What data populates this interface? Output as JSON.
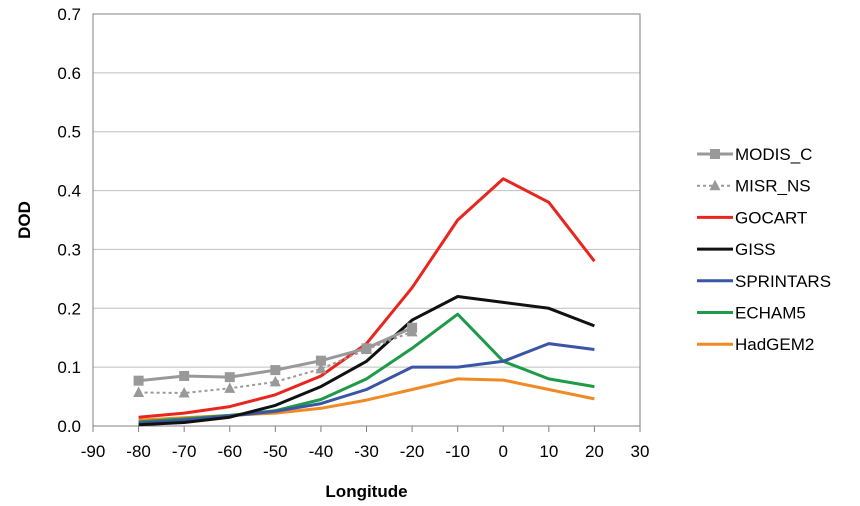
{
  "chart_data": {
    "type": "line",
    "xlabel": "Longitude",
    "ylabel": "DOD",
    "xlim": [
      -90,
      30
    ],
    "ylim": [
      0,
      0.7
    ],
    "xticks": [
      "-90",
      "-80",
      "-70",
      "-60",
      "-50",
      "-40",
      "-30",
      "-20",
      "-10",
      "0",
      "10",
      "20",
      "30"
    ],
    "yticks": [
      "0.0",
      "0.1",
      "0.2",
      "0.3",
      "0.4",
      "0.5",
      "0.6",
      "0.7"
    ],
    "grid": "horizontal",
    "legend_position": "right",
    "series": [
      {
        "name": "MODIS_C",
        "color": "#999999",
        "style": "solid",
        "marker": "square",
        "x": [
          -80,
          -70,
          -60,
          -50,
          -40,
          -30,
          -20
        ],
        "y": [
          0.077,
          0.085,
          0.083,
          0.095,
          0.111,
          0.132,
          0.167
        ]
      },
      {
        "name": "MISR_NS",
        "color": "#999999",
        "style": "dotted",
        "marker": "triangle",
        "x": [
          -80,
          -70,
          -60,
          -50,
          -40,
          -30,
          -20
        ],
        "y": [
          0.057,
          0.056,
          0.064,
          0.075,
          0.097,
          0.13,
          0.16
        ]
      },
      {
        "name": "GOCART",
        "color": "#e8261f",
        "style": "solid",
        "marker": "none",
        "x": [
          -80,
          -70,
          -60,
          -50,
          -40,
          -30,
          -20,
          -10,
          0,
          10,
          20
        ],
        "y": [
          0.015,
          0.022,
          0.033,
          0.053,
          0.085,
          0.14,
          0.235,
          0.35,
          0.42,
          0.38,
          0.28
        ]
      },
      {
        "name": "GISS",
        "color": "#111111",
        "style": "solid",
        "marker": "none",
        "x": [
          -80,
          -70,
          -60,
          -50,
          -40,
          -30,
          -20,
          -10,
          0,
          10,
          20
        ],
        "y": [
          0.002,
          0.006,
          0.015,
          0.035,
          0.067,
          0.11,
          0.18,
          0.22,
          0.21,
          0.2,
          0.17
        ]
      },
      {
        "name": "SPRINTARS",
        "color": "#3a55a6",
        "style": "solid",
        "marker": "none",
        "x": [
          -80,
          -70,
          -60,
          -50,
          -40,
          -30,
          -20,
          -10,
          0,
          10,
          20
        ],
        "y": [
          0.005,
          0.01,
          0.017,
          0.025,
          0.038,
          0.062,
          0.1,
          0.1,
          0.11,
          0.14,
          0.13
        ]
      },
      {
        "name": "ECHAM5",
        "color": "#1f9a48",
        "style": "solid",
        "marker": "none",
        "x": [
          -80,
          -70,
          -60,
          -50,
          -40,
          -30,
          -20,
          -10,
          0,
          10,
          20
        ],
        "y": [
          0.007,
          0.012,
          0.018,
          0.026,
          0.045,
          0.08,
          0.132,
          0.19,
          0.11,
          0.08,
          0.067
        ]
      },
      {
        "name": "HadGEM2",
        "color": "#f08a24",
        "style": "solid",
        "marker": "none",
        "x": [
          -80,
          -70,
          -60,
          -50,
          -40,
          -30,
          -20,
          -10,
          0,
          10,
          20
        ],
        "y": [
          0.01,
          0.014,
          0.018,
          0.022,
          0.03,
          0.044,
          0.062,
          0.08,
          0.078,
          0.062,
          0.046
        ]
      }
    ]
  }
}
